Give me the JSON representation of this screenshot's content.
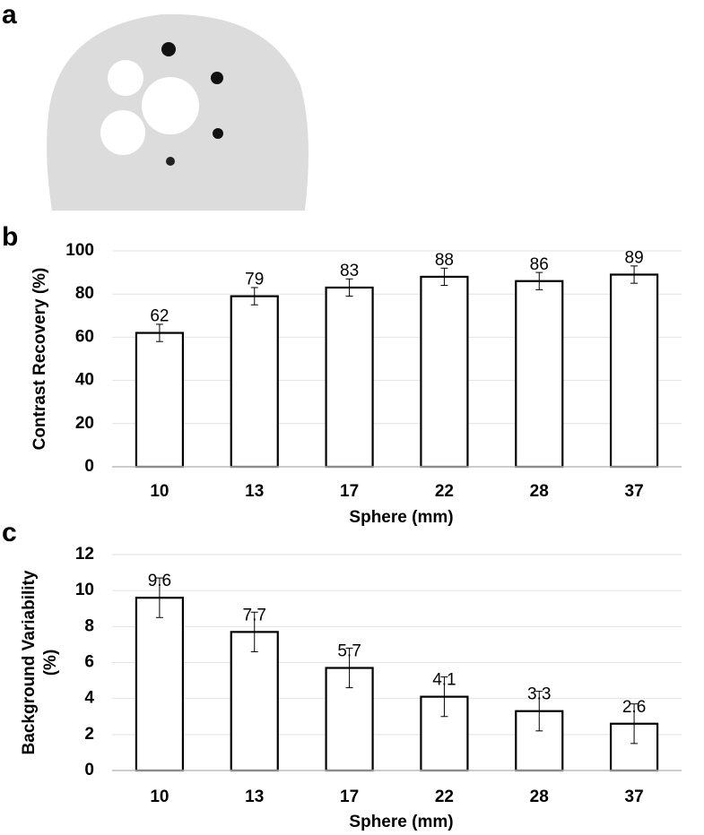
{
  "panel_labels": [
    "a",
    "b",
    "c"
  ],
  "chart_data": [
    {
      "type": "bar",
      "xlabel": "Sphere (mm)",
      "ylabel": [
        "Contrast Recovery (%)"
      ],
      "categories": [
        "10",
        "13",
        "17",
        "22",
        "28",
        "37"
      ],
      "values": [
        62,
        79,
        83,
        88,
        86,
        89
      ],
      "errors": [
        4,
        4,
        4,
        4,
        4,
        4
      ],
      "ylim": [
        0,
        100
      ],
      "yticks": [
        0,
        20,
        40,
        60,
        80,
        100
      ],
      "grid": true,
      "color": "#ffffff",
      "edgecolor": "#000000"
    },
    {
      "type": "bar",
      "xlabel": "Sphere (mm)",
      "ylabel": [
        "Background Variability",
        "(%)"
      ],
      "categories": [
        "10",
        "13",
        "17",
        "22",
        "28",
        "37"
      ],
      "values": [
        9.6,
        7.7,
        5.7,
        4.1,
        3.3,
        2.6
      ],
      "errors": [
        1.1,
        1.1,
        1.1,
        1.1,
        1.1,
        1.1
      ],
      "ylim": [
        0,
        12
      ],
      "yticks": [
        0,
        2,
        4,
        6,
        8,
        10,
        12
      ],
      "grid": true,
      "color": "#ffffff",
      "edgecolor": "#000000"
    }
  ]
}
